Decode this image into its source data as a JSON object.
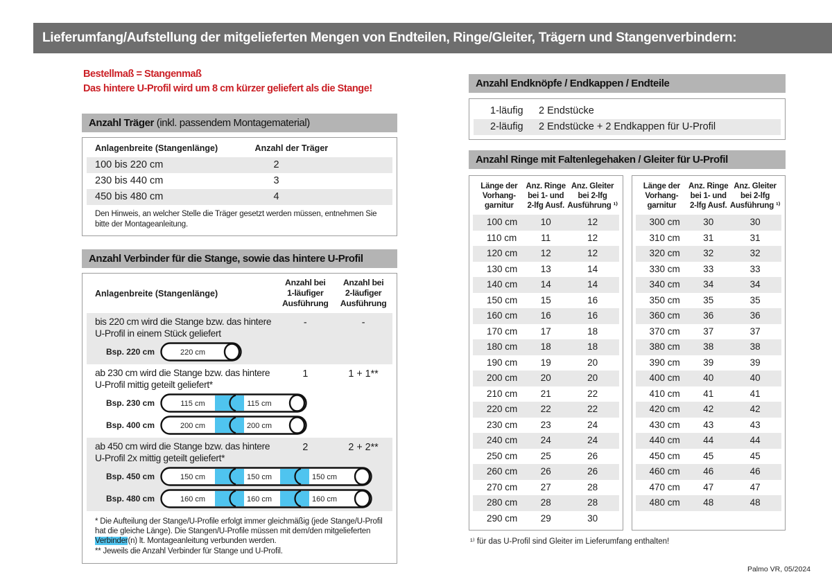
{
  "header": {
    "title": "Lieferumfang/Aufstellung der mitgelieferten Mengen von Endteilen, Ringe/Gleiter, Trägern und Stangenverbindern:"
  },
  "colors": {
    "title_bar": "#6e6e6e",
    "section_bar": "#b4b4b4",
    "row_alt": "#e8e8e8",
    "accent_red": "#cb2026",
    "connector_blue": "#4fc4ef",
    "border": "#9c9c9c"
  },
  "notice": {
    "line1": "Bestellmaß = Stangenmaß",
    "line2": "Das hintere U-Profil wird um 8 cm kürzer geliefert als die Stange!"
  },
  "traeger": {
    "title_bold": "Anzahl Träger",
    "title_rest": " (inkl. passendem Montagematerial)",
    "col1": "Anlagenbreite (Stangenlänge)",
    "col2": "Anzahl der Träger",
    "rows": [
      {
        "range": "100 bis 220 cm",
        "count": "2"
      },
      {
        "range": "230 bis 440 cm",
        "count": "3"
      },
      {
        "range": "450 bis 480 cm",
        "count": "4"
      }
    ],
    "note": "Den Hinweis, an welcher Stelle die Träger gesetzt werden müssen, entnehmen Sie bitte der Montageanleitung."
  },
  "verbinder": {
    "title": "Anzahl Verbinder für die Stange, sowie das hintere U-Profil",
    "col_label": "Anlagenbreite (Stangenlänge)",
    "col_1laeufig": [
      "Anzahl bei",
      "1-läufiger",
      "Ausführung"
    ],
    "col_2laeufig": [
      "Anzahl bei",
      "2-läufiger",
      "Ausführung"
    ],
    "rows": [
      {
        "text": "bis 220 cm wird die Stange bzw. das hintere U-Profil in einem Stück geliefert",
        "val1": "-",
        "val2": "-",
        "examples": [
          {
            "label": "Bsp. 220 cm",
            "segments": [
              "220 cm"
            ]
          }
        ]
      },
      {
        "text": "ab 230 cm wird die Stange bzw. das hintere U-Profil mittig geteilt geliefert*",
        "val1": "1",
        "val2": "1 + 1**",
        "examples": [
          {
            "label": "Bsp. 230 cm",
            "segments": [
              "115 cm",
              "115 cm"
            ]
          },
          {
            "label": "Bsp. 400 cm",
            "segments": [
              "200 cm",
              "200 cm"
            ]
          }
        ]
      },
      {
        "text": "ab 450 cm wird die Stange bzw. das hintere U-Profil 2x mittig geteilt geliefert*",
        "val1": "2",
        "val2": "2 + 2**",
        "examples": [
          {
            "label": "Bsp. 450 cm",
            "segments": [
              "150 cm",
              "150 cm",
              "150 cm"
            ]
          },
          {
            "label": "Bsp. 480 cm",
            "segments": [
              "160 cm",
              "160 cm",
              "160 cm"
            ]
          }
        ]
      }
    ],
    "footnote1_pre": "* Die Aufteilung der Stange/U-Profile erfolgt immer gleichmäßig (jede Stange/U-Profil hat die gleiche Länge). Die Stangen/U-Profile müssen mit dem/den mitgelieferten ",
    "footnote1_highlight": "Verbinder",
    "footnote1_post": "(n) lt. Montageanleitung verbunden werden.",
    "footnote2": "** Jeweils die Anzahl Verbinder für Stange und U-Profil."
  },
  "endteile": {
    "title": "Anzahl Endknöpfe / Endkappen / Endteile",
    "rows": [
      {
        "type": "1-läufig",
        "value": "2 Endstücke"
      },
      {
        "type": "2-läufig",
        "value": "2 Endstücke + 2 Endkappen für U-Profil"
      }
    ]
  },
  "ringe": {
    "title": "Anzahl Ringe mit Faltenlegehaken / Gleiter für U-Profil",
    "col_laenge": [
      "Länge der",
      "Vorhang-",
      "garnitur"
    ],
    "col_ringe": [
      "Anz. Ringe",
      "bei 1- und",
      "2-lfg Ausf."
    ],
    "col_gleiter": [
      "Anz. Gleiter",
      "bei 2-lfg",
      "Ausführung ¹⁾"
    ],
    "table_left": [
      [
        "100 cm",
        "10",
        "12"
      ],
      [
        "110 cm",
        "11",
        "12"
      ],
      [
        "120 cm",
        "12",
        "12"
      ],
      [
        "130 cm",
        "13",
        "14"
      ],
      [
        "140 cm",
        "14",
        "14"
      ],
      [
        "150 cm",
        "15",
        "16"
      ],
      [
        "160 cm",
        "16",
        "16"
      ],
      [
        "170 cm",
        "17",
        "18"
      ],
      [
        "180 cm",
        "18",
        "18"
      ],
      [
        "190 cm",
        "19",
        "20"
      ],
      [
        "200 cm",
        "20",
        "20"
      ],
      [
        "210 cm",
        "21",
        "22"
      ],
      [
        "220 cm",
        "22",
        "22"
      ],
      [
        "230 cm",
        "23",
        "24"
      ],
      [
        "240 cm",
        "24",
        "24"
      ],
      [
        "250 cm",
        "25",
        "26"
      ],
      [
        "260 cm",
        "26",
        "26"
      ],
      [
        "270 cm",
        "27",
        "28"
      ],
      [
        "280 cm",
        "28",
        "28"
      ],
      [
        "290 cm",
        "29",
        "30"
      ]
    ],
    "table_right": [
      [
        "300 cm",
        "30",
        "30"
      ],
      [
        "310 cm",
        "31",
        "31"
      ],
      [
        "320 cm",
        "32",
        "32"
      ],
      [
        "330 cm",
        "33",
        "33"
      ],
      [
        "340 cm",
        "34",
        "34"
      ],
      [
        "350 cm",
        "35",
        "35"
      ],
      [
        "360 cm",
        "36",
        "36"
      ],
      [
        "370 cm",
        "37",
        "37"
      ],
      [
        "380 cm",
        "38",
        "38"
      ],
      [
        "390 cm",
        "39",
        "39"
      ],
      [
        "400 cm",
        "40",
        "40"
      ],
      [
        "410 cm",
        "41",
        "41"
      ],
      [
        "420 cm",
        "42",
        "42"
      ],
      [
        "430 cm",
        "43",
        "43"
      ],
      [
        "440 cm",
        "44",
        "44"
      ],
      [
        "450 cm",
        "45",
        "45"
      ],
      [
        "460 cm",
        "46",
        "46"
      ],
      [
        "470 cm",
        "47",
        "47"
      ],
      [
        "480 cm",
        "48",
        "48"
      ]
    ],
    "footnote": "¹⁾ für das U-Profil sind Gleiter im Lieferumfang enthalten!"
  },
  "footer": {
    "text": "Palmo VR, 05/2024"
  }
}
